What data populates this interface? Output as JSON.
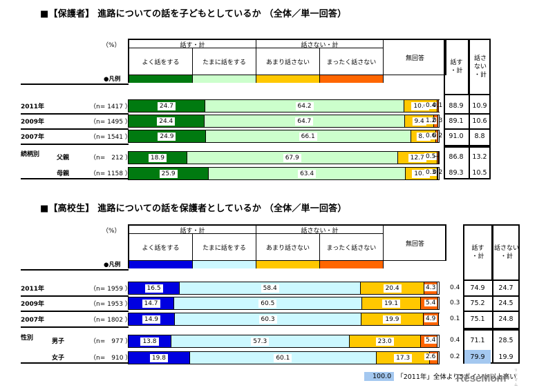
{
  "charts": [
    {
      "title": "■【保護者】 進路についての話を子どもとしているか （全体／単一回答）",
      "unit": "（%）",
      "group_talk": "話す・計",
      "group_not_talk": "話さない・計",
      "legend_label": "●凡例",
      "categories": [
        "よく話をする",
        "たまに話をする",
        "あまり話さない",
        "まったく話さない",
        "無回答"
      ],
      "colors": [
        "#007a10",
        "#ccffcc",
        "#ffc800",
        "#ff6600",
        "#ffffff"
      ],
      "sum_headers": [
        "話す\n・計",
        "話さ\nない\n・計"
      ],
      "rows": [
        {
          "label": "2011年",
          "sub": "",
          "n": "（n= 1417 ）",
          "values": [
            "24.7",
            "64.2",
            "10.6",
            "0.4",
            "0.1"
          ],
          "sum_talk": "88.9",
          "sum_not": "10.9"
        },
        {
          "label": "2009年",
          "sub": "",
          "n": "（n= 1495 ）",
          "values": [
            "24.4",
            "64.7",
            "9.4",
            "1.2",
            "0.3"
          ],
          "sum_talk": "89.1",
          "sum_not": "10.6"
        },
        {
          "label": "2007年",
          "sub": "",
          "n": "（n= 1541 ）",
          "values": [
            "24.9",
            "66.1",
            "8.2",
            "0.6",
            "0.2"
          ],
          "sum_talk": "91.0",
          "sum_not": "8.8"
        },
        {
          "label": "続柄別",
          "sub": "父親",
          "n": "（n=　212 ）",
          "values": [
            "18.9",
            "67.9",
            "12.7",
            "0.5",
            "—"
          ],
          "sum_talk": "86.8",
          "sum_not": "13.2"
        },
        {
          "label": "",
          "sub": "母親",
          "n": "（n= 1158 ）",
          "values": [
            "25.9",
            "63.4",
            "10.2",
            "0.3",
            "0.2"
          ],
          "sum_talk": "89.3",
          "sum_not": "10.5"
        }
      ]
    },
    {
      "title": "■【高校生】 進路についての話を保護者としているか （全体／単一回答）",
      "unit": "（%）",
      "group_talk": "話す・計",
      "group_not_talk": "話さない・計",
      "legend_label": "●凡例",
      "categories": [
        "よく話をする",
        "たまに話をする",
        "あまり話さない",
        "まったく話さない",
        "無回答"
      ],
      "colors": [
        "#0000e0",
        "#ccf8ff",
        "#ffc800",
        "#ff6600",
        "#ffffff"
      ],
      "sum_headers": [
        "話す\n・計",
        "話さない\n・計"
      ],
      "rows": [
        {
          "label": "2011年",
          "sub": "",
          "n": "（n= 1959 ）",
          "values": [
            "16.5",
            "58.4",
            "20.4",
            "4.3",
            "0.4"
          ],
          "sum_talk": "74.9",
          "sum_not": "24.7"
        },
        {
          "label": "2009年",
          "sub": "",
          "n": "（n= 1953 ）",
          "values": [
            "14.7",
            "60.5",
            "19.1",
            "5.4",
            "0.3"
          ],
          "sum_talk": "75.2",
          "sum_not": "24.5"
        },
        {
          "label": "2007年",
          "sub": "",
          "n": "（n= 1802 ）",
          "values": [
            "14.9",
            "60.3",
            "19.9",
            "4.9",
            "0.1"
          ],
          "sum_talk": "75.1",
          "sum_not": "24.8"
        },
        {
          "label": "性別",
          "sub": "男子",
          "n": "（n=　977 ）",
          "values": [
            "13.8",
            "57.3",
            "23.0",
            "5.4",
            "0.4"
          ],
          "sum_talk": "71.1",
          "sum_not": "28.5"
        },
        {
          "label": "",
          "sub": "女子",
          "n": "（n=　910 ）",
          "values": [
            "19.8",
            "60.1",
            "17.3",
            "2.6",
            "0.2"
          ],
          "sum_talk": "79.9",
          "sum_not": "19.9",
          "highlight": true
        }
      ]
    }
  ],
  "footnote": {
    "swatch_value": "100.0",
    "text": "「2011年」全体より5ポイント以上高い",
    "swatch_color": "#a4c8f0"
  },
  "watermark": {
    "text": "ReseMom",
    "sub": "リセマム"
  },
  "chart_data": [
    {
      "type": "bar",
      "orientation": "horizontal-stacked-100",
      "title": "【保護者】進路についての話を子どもとしているか（全体／単一回答）",
      "xlabel": "(%)",
      "categories": [
        "2011年 (n=1417)",
        "2009年 (n=1495)",
        "2007年 (n=1541)",
        "続柄別 父親 (n=212)",
        "続柄別 母親 (n=1158)"
      ],
      "series": [
        {
          "name": "よく話をする",
          "color": "#007a10",
          "values": [
            24.7,
            24.4,
            24.9,
            18.9,
            25.9
          ]
        },
        {
          "name": "たまに話をする",
          "color": "#ccffcc",
          "values": [
            64.2,
            64.7,
            66.1,
            67.9,
            63.4
          ]
        },
        {
          "name": "あまり話さない",
          "color": "#ffc800",
          "values": [
            10.6,
            9.4,
            8.2,
            12.7,
            10.2
          ]
        },
        {
          "name": "まったく話さない",
          "color": "#ff6600",
          "values": [
            0.4,
            1.2,
            0.6,
            0.5,
            0.3
          ]
        },
        {
          "name": "無回答",
          "color": "#ffffff",
          "values": [
            0.1,
            0.3,
            0.2,
            0.0,
            0.2
          ]
        }
      ],
      "totals": {
        "話す・計": [
          88.9,
          89.1,
          91.0,
          86.8,
          89.3
        ],
        "話さない・計": [
          10.9,
          10.6,
          8.8,
          13.2,
          10.5
        ]
      },
      "xlim": [
        0,
        100
      ]
    },
    {
      "type": "bar",
      "orientation": "horizontal-stacked-100",
      "title": "【高校生】進路についての話を保護者としているか（全体／単一回答）",
      "xlabel": "(%)",
      "categories": [
        "2011年 (n=1959)",
        "2009年 (n=1953)",
        "2007年 (n=1802)",
        "性別 男子 (n=977)",
        "性別 女子 (n=910)"
      ],
      "series": [
        {
          "name": "よく話をする",
          "color": "#0000e0",
          "values": [
            16.5,
            14.7,
            14.9,
            13.8,
            19.8
          ]
        },
        {
          "name": "たまに話をする",
          "color": "#ccf8ff",
          "values": [
            58.4,
            60.5,
            60.3,
            57.3,
            60.1
          ]
        },
        {
          "name": "あまり話さない",
          "color": "#ffc800",
          "values": [
            20.4,
            19.1,
            19.9,
            23.0,
            17.3
          ]
        },
        {
          "name": "まったく話さない",
          "color": "#ff6600",
          "values": [
            4.3,
            5.4,
            4.9,
            5.4,
            2.6
          ]
        },
        {
          "name": "無回答",
          "color": "#ffffff",
          "values": [
            0.4,
            0.3,
            0.1,
            0.4,
            0.2
          ]
        }
      ],
      "totals": {
        "話す・計": [
          74.9,
          75.2,
          75.1,
          71.1,
          79.9
        ],
        "話さない・計": [
          24.7,
          24.5,
          24.8,
          28.5,
          19.9
        ]
      },
      "highlighted": [
        {
          "row": "女子",
          "column": "話す・計",
          "value": 79.9
        }
      ],
      "annotation": "「2011年」全体より5ポイント以上高い",
      "xlim": [
        0,
        100
      ]
    }
  ]
}
